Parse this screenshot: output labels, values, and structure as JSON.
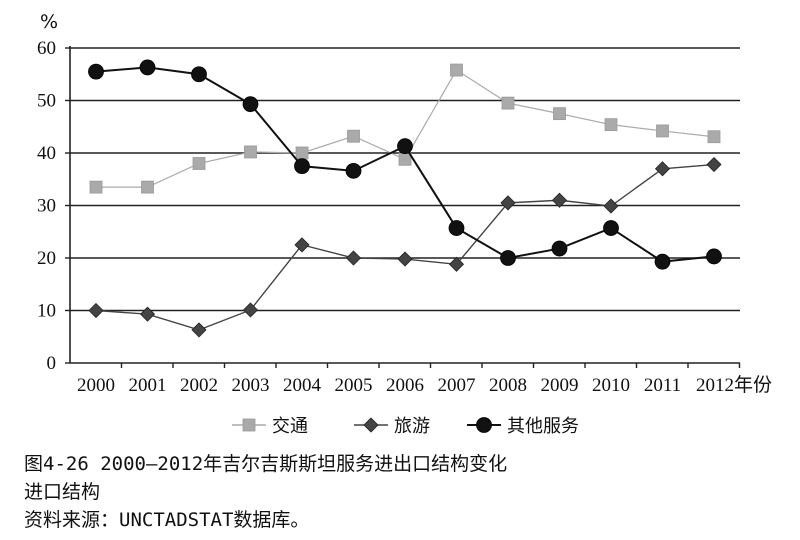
{
  "chart_data": {
    "type": "line",
    "ylabel": "%",
    "xlabel": "",
    "ylim": [
      0,
      60
    ],
    "yticks": [
      0,
      10,
      20,
      30,
      40,
      50,
      60
    ],
    "grid": "horizontal",
    "legend_position": "bottom",
    "categories": [
      "2000",
      "2001",
      "2002",
      "2003",
      "2004",
      "2005",
      "2006",
      "2007",
      "2008",
      "2009",
      "2010",
      "2011",
      "2012年份"
    ],
    "series": [
      {
        "name": "交通",
        "color": "#aaaaaa",
        "marker": "square",
        "values": [
          33.5,
          33.5,
          38,
          40.2,
          40,
          43.2,
          38.8,
          55.8,
          49.5,
          47.5,
          45.4,
          44.2,
          43.1
        ]
      },
      {
        "name": "旅游",
        "color": "#444444",
        "marker": "diamond",
        "values": [
          10,
          9.3,
          6.3,
          10.1,
          22.5,
          20,
          19.8,
          18.8,
          30.5,
          31,
          29.9,
          37,
          37.8
        ]
      },
      {
        "name": "其他服务",
        "color": "#111111",
        "marker": "circle",
        "values": [
          55.5,
          56.3,
          55,
          49.3,
          37.5,
          36.6,
          41.3,
          25.7,
          20,
          21.8,
          25.7,
          19.3,
          20.3
        ]
      }
    ]
  },
  "caption": {
    "line1": "图4-26  2000—2012年吉尔吉斯斯坦服务进出口结构变化",
    "line2": "进口结构",
    "line3": "资料来源：UNCTADSTAT数据库。"
  }
}
